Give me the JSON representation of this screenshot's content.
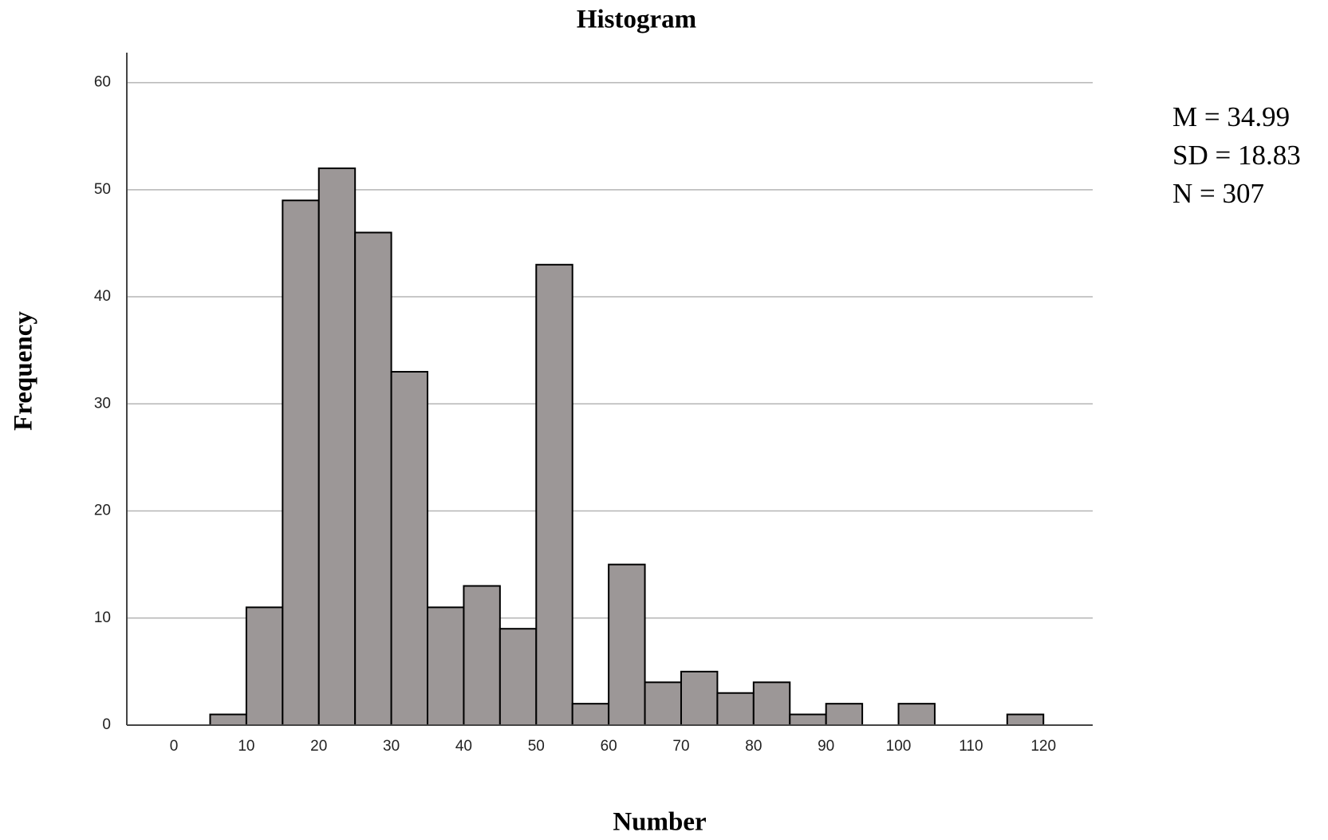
{
  "chart_data": {
    "type": "histogram",
    "title": "Histogram",
    "xlabel": "Number",
    "ylabel": "Frequency",
    "bins": [
      5,
      10,
      15,
      20,
      25,
      30,
      35,
      40,
      45,
      50,
      55,
      60,
      65,
      70,
      75,
      80,
      85,
      90,
      95,
      100,
      105,
      110,
      115,
      120
    ],
    "values": [
      1,
      11,
      49,
      52,
      46,
      33,
      11,
      13,
      9,
      43,
      2,
      15,
      4,
      5,
      3,
      4,
      1,
      2,
      0,
      2,
      0,
      0,
      1
    ],
    "color": "#9c9797",
    "xlim": [
      -6.5,
      126.8
    ],
    "xticks": [
      0,
      10,
      20,
      30,
      40,
      50,
      60,
      70,
      80,
      90,
      100,
      110,
      120
    ],
    "ylim": [
      0,
      62.8
    ],
    "yticks": [
      0,
      10,
      20,
      30,
      40,
      50,
      60
    ],
    "grid": true,
    "annotations": [
      "M = 34.99",
      "SD = 18.83",
      "N = 307"
    ]
  }
}
